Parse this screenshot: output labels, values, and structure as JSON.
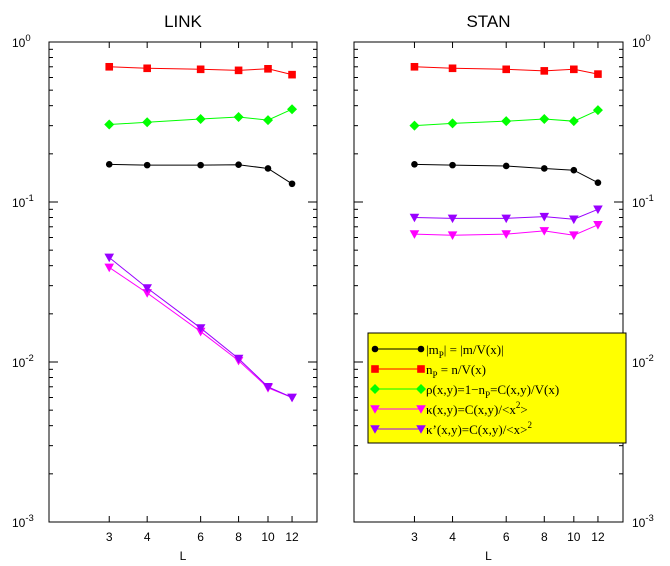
{
  "chart_data": [
    {
      "type": "line",
      "title": "LINK",
      "xlabel": "L",
      "ylabel": "",
      "x_scale": "log",
      "y_scale": "log",
      "xlim": [
        1.9,
        14.5
      ],
      "ylim": [
        0.001,
        1
      ],
      "x": [
        3,
        4,
        6,
        8,
        10,
        12
      ],
      "x_tick_labels": [
        "3",
        "4",
        "6",
        "8",
        "10",
        "12"
      ],
      "y_tick_labels": [
        {
          "base": "10",
          "exp": "0"
        },
        {
          "base": "10",
          "exp": "-1"
        },
        {
          "base": "10",
          "exp": "-2"
        },
        {
          "base": "10",
          "exp": "-3"
        }
      ],
      "y_tick_side": "left",
      "series": [
        {
          "id": "mp",
          "values": [
            0.172,
            0.17,
            0.17,
            0.171,
            0.162,
            0.13
          ]
        },
        {
          "id": "np",
          "values": [
            0.7,
            0.685,
            0.675,
            0.665,
            0.68,
            0.625
          ]
        },
        {
          "id": "rho",
          "values": [
            0.305,
            0.315,
            0.33,
            0.34,
            0.325,
            0.38
          ]
        },
        {
          "id": "kappa",
          "values": [
            0.039,
            0.027,
            0.0155,
            0.0102,
            0.0069,
            0.006
          ]
        },
        {
          "id": "kappa_prime",
          "values": [
            0.045,
            0.029,
            0.0163,
            0.0105,
            0.007,
            0.006
          ]
        }
      ]
    },
    {
      "type": "line",
      "title": "STAN",
      "xlabel": "L",
      "ylabel": "",
      "x_scale": "log",
      "y_scale": "log",
      "xlim": [
        1.9,
        14.5
      ],
      "ylim": [
        0.001,
        1
      ],
      "x": [
        3,
        4,
        6,
        8,
        10,
        12
      ],
      "x_tick_labels": [
        "3",
        "4",
        "6",
        "8",
        "10",
        "12"
      ],
      "y_tick_labels": [
        {
          "base": "10",
          "exp": "0"
        },
        {
          "base": "10",
          "exp": "-1"
        },
        {
          "base": "10",
          "exp": "-2"
        },
        {
          "base": "10",
          "exp": "-3"
        }
      ],
      "y_tick_side": "right",
      "legend_position": "bottom-right",
      "legend_background": "#ffff00",
      "series": [
        {
          "id": "mp",
          "values": [
            0.172,
            0.17,
            0.168,
            0.162,
            0.158,
            0.132
          ]
        },
        {
          "id": "np",
          "values": [
            0.7,
            0.685,
            0.675,
            0.66,
            0.675,
            0.63
          ]
        },
        {
          "id": "rho",
          "values": [
            0.3,
            0.31,
            0.32,
            0.33,
            0.32,
            0.375
          ]
        },
        {
          "id": "kappa",
          "values": [
            0.063,
            0.062,
            0.063,
            0.066,
            0.062,
            0.072
          ]
        },
        {
          "id": "kappa_prime",
          "values": [
            0.08,
            0.079,
            0.079,
            0.081,
            0.078,
            0.09
          ]
        }
      ]
    }
  ],
  "series_styles": [
    {
      "id": "mp",
      "color": "#000000",
      "marker": "circle"
    },
    {
      "id": "np",
      "color": "#ff0000",
      "marker": "square"
    },
    {
      "id": "rho",
      "color": "#00ff00",
      "marker": "diamond"
    },
    {
      "id": "kappa",
      "color": "#ff00ff",
      "marker": "triangle-down"
    },
    {
      "id": "kappa_prime",
      "color": "#9900ff",
      "marker": "triangle-down"
    }
  ],
  "legend": [
    {
      "id": "mp",
      "parts": [
        {
          "t": "|m"
        },
        {
          "t": "P",
          "sub": true
        },
        {
          "t": "| = |m/V(x)|"
        }
      ]
    },
    {
      "id": "np",
      "parts": [
        {
          "t": "n"
        },
        {
          "t": "P",
          "sub": true
        },
        {
          "t": " = n/V(x)"
        }
      ]
    },
    {
      "id": "rho",
      "parts": [
        {
          "t": "ρ(x,y)=1−n"
        },
        {
          "t": "P",
          "sub": true
        },
        {
          "t": "=C(x,y)/V(x)"
        }
      ]
    },
    {
      "id": "kappa",
      "parts": [
        {
          "t": "κ(x,y)=C(x,y)/<x"
        },
        {
          "t": "2",
          "sup": true
        },
        {
          "t": ">"
        }
      ]
    },
    {
      "id": "kappa_prime",
      "parts": [
        {
          "t": "κ’(x,y)=C(x,y)/<x>"
        },
        {
          "t": "2",
          "sup": true
        }
      ]
    }
  ]
}
